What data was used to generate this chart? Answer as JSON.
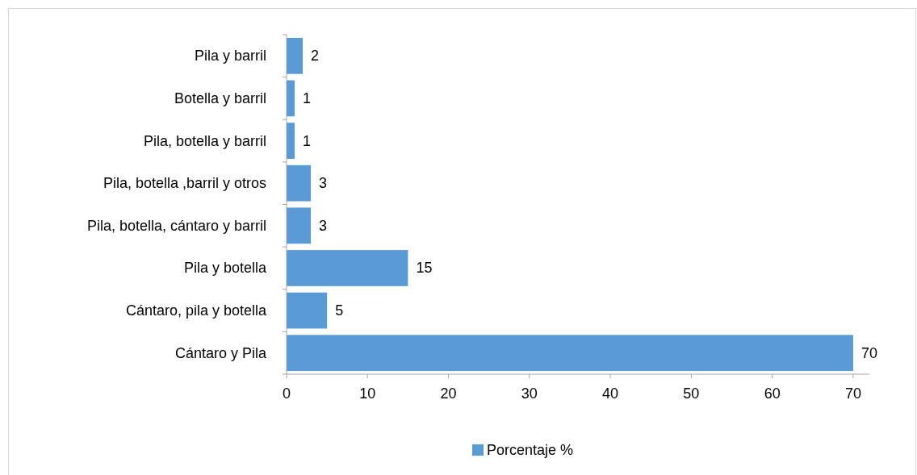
{
  "chart_data": {
    "type": "bar",
    "orientation": "horizontal",
    "categories": [
      "Pila y barril",
      "Botella y barril",
      "Pila, botella y barril",
      "Pila, botella ,barril y otros",
      "Pila, botella, cántaro y barril",
      "Pila y botella",
      "Cántaro, pila y botella",
      "Cántaro y Pila"
    ],
    "series": [
      {
        "name": "Porcentaje %",
        "color": "#5b9bd5",
        "values": [
          2,
          1,
          1,
          3,
          3,
          15,
          5,
          70
        ]
      }
    ],
    "xlim": [
      0,
      72
    ],
    "xticks": [
      0,
      10,
      20,
      30,
      40,
      50,
      60,
      70
    ],
    "data_labels": true,
    "legend": "bottom",
    "grid": false
  }
}
